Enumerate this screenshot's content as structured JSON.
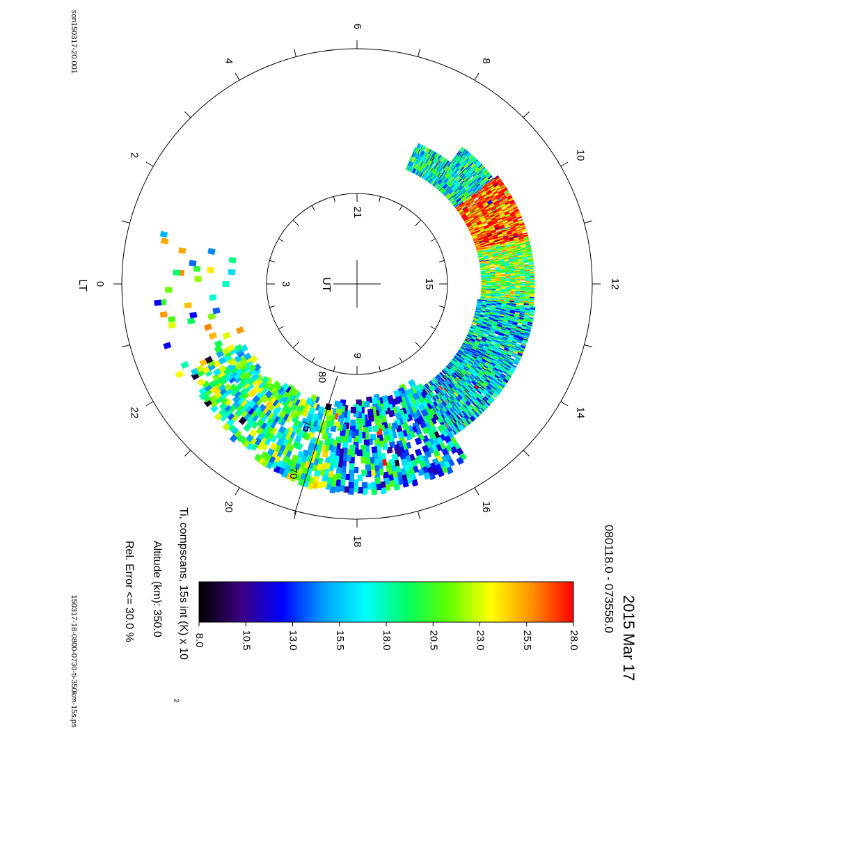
{
  "file_top": "son150317-20.001",
  "file_bottom": "150317-18-0800-0730-ti-350km-15s.ps",
  "title_date": "2015 Mar 17",
  "title_time": "080118.0 - 073558.0",
  "param_label": "Ti, compscans, 15s int (K) x 10",
  "param_exponent": "2",
  "altitude_label": "Altitude (km): 350.0",
  "error_label": "Rel. Error <= 30.0 %",
  "lt_axis_label": "LT",
  "ut_axis_label": "UT",
  "lt_ticks": [
    "18",
    "20",
    "22",
    "0",
    "2",
    "4",
    "6",
    "8",
    "10",
    "12",
    "14",
    "16"
  ],
  "ut_ticks": [
    "21",
    "3",
    "9",
    "15"
  ],
  "lat_ticks": [
    "80",
    "75",
    "70"
  ],
  "colorbar_ticks": [
    "8.0",
    "10.5",
    "13.0",
    "15.5",
    "18.0",
    "20.5",
    "23.0",
    "25.5",
    "28.0"
  ],
  "chart_data": {
    "type": "heatmap",
    "projection": "polar (magnetic local time vs latitude)",
    "value_range": [
      8.0,
      28.0
    ],
    "colormap": [
      "#000000",
      "#3a0080",
      "#0000ff",
      "#00a0ff",
      "#00ffff",
      "#00ff60",
      "#60ff00",
      "#ffff00",
      "#ff9000",
      "#ff0000"
    ],
    "latitude_ticks": [
      80,
      75,
      70
    ],
    "lt_range_hours": [
      7.5,
      16.0
    ],
    "sparse_lt_range_hours": [
      16.0,
      1.0
    ],
    "regions": [
      {
        "lt_range": [
          8.0,
          9.5
        ],
        "dominant_value": 17.5
      },
      {
        "lt_range": [
          9.5,
          11.0
        ],
        "dominant_value": 27.0
      },
      {
        "lt_range": [
          11.0,
          12.5
        ],
        "dominant_value": 21.0
      },
      {
        "lt_range": [
          12.5,
          14.5
        ],
        "dominant_value": 16.5
      },
      {
        "lt_range": [
          14.5,
          18.5
        ],
        "dominant_value": 16.0
      },
      {
        "lt_range": [
          18.5,
          22.0
        ],
        "dominant_value": 19.0
      },
      {
        "lt_range": [
          22.0,
          1.0
        ],
        "dominant_value": 20.0
      }
    ]
  }
}
